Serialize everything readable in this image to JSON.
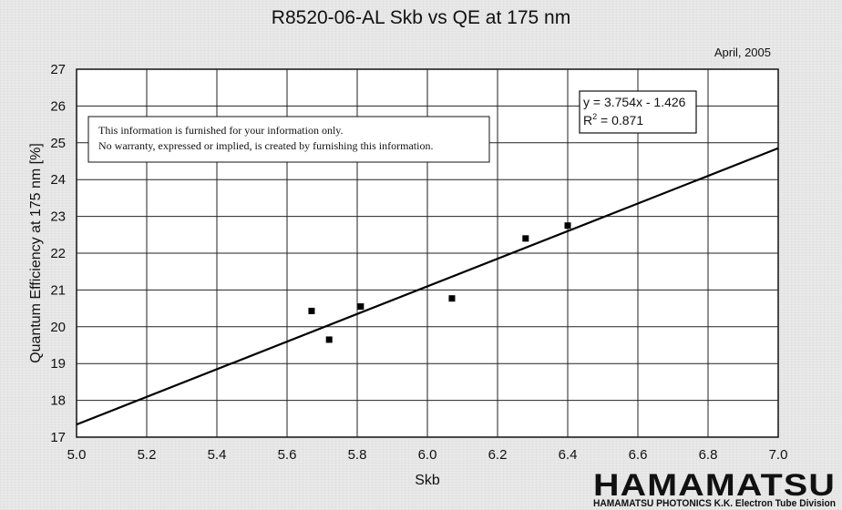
{
  "chart_data": {
    "type": "scatter",
    "title": "R8520-06-AL Skb vs QE at 175 nm",
    "date": "April, 2005",
    "xlabel": "Skb",
    "ylabel": "Quantum Efficiency at 175 nm [%]",
    "xlim": [
      5.0,
      7.0
    ],
    "ylim": [
      17,
      27
    ],
    "x_ticks": [
      "5.0",
      "5.2",
      "5.4",
      "5.6",
      "5.8",
      "6.0",
      "6.2",
      "6.4",
      "6.6",
      "6.8",
      "7.0"
    ],
    "y_ticks": [
      "17",
      "18",
      "19",
      "20",
      "21",
      "22",
      "23",
      "24",
      "25",
      "26",
      "27"
    ],
    "grid": true,
    "points": [
      {
        "x": 5.67,
        "y": 20.43
      },
      {
        "x": 5.72,
        "y": 19.65
      },
      {
        "x": 5.81,
        "y": 20.55
      },
      {
        "x": 6.07,
        "y": 20.77
      },
      {
        "x": 6.28,
        "y": 22.4
      },
      {
        "x": 6.4,
        "y": 22.75
      }
    ],
    "trendline": {
      "slope": 3.754,
      "intercept": -1.426
    },
    "equation_label": "y = 3.754x - 1.426",
    "r2_label": "R",
    "r2_sup": "2",
    "r2_value": " = 0.871",
    "note_lines": [
      "This information is furnished for your information only.",
      "No warranty, expressed or implied, is created by furnishing this information."
    ]
  },
  "logo": {
    "name": "HAMAMATSU",
    "subtitle": "HAMAMATSU PHOTONICS K.K. Electron Tube Division"
  }
}
